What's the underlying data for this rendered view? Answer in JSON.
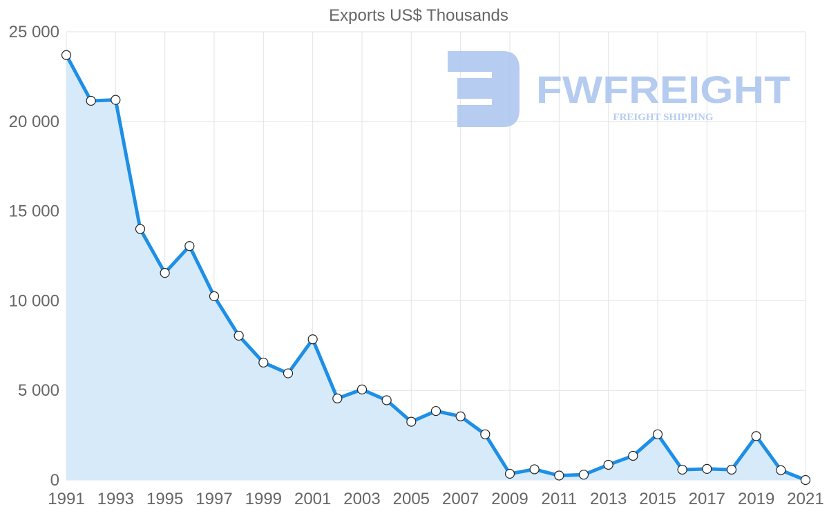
{
  "chart_data": {
    "type": "area",
    "title": "Exports US$ Thousands",
    "x": [
      "1991",
      "1992",
      "1993",
      "1994",
      "1995",
      "1996",
      "1997",
      "1998",
      "1999",
      "2000",
      "2001",
      "2002",
      "2003",
      "2004",
      "2005",
      "2006",
      "2007",
      "2008",
      "2009",
      "2010",
      "2011",
      "2012",
      "2013",
      "2014",
      "2015",
      "2016",
      "2017",
      "2018",
      "2019",
      "2020",
      "2021"
    ],
    "series": [
      {
        "name": "Exports US$ Thousands",
        "values": [
          23700,
          21150,
          21200,
          14000,
          11550,
          13050,
          10250,
          8050,
          6550,
          5950,
          7850,
          4550,
          5050,
          4450,
          3250,
          3850,
          3550,
          2550,
          350,
          600,
          250,
          300,
          850,
          1350,
          2550,
          580,
          620,
          580,
          2450,
          550,
          0
        ]
      }
    ],
    "x_tick_labels": [
      "1991",
      "1993",
      "1995",
      "1997",
      "1999",
      "2001",
      "2003",
      "2005",
      "2007",
      "2009",
      "2011",
      "2013",
      "2015",
      "2017",
      "2019",
      "2021"
    ],
    "y_tick_labels": [
      "0",
      "5 000",
      "10 000",
      "15 000",
      "20 000",
      "25 000"
    ],
    "ylim": [
      0,
      25000
    ],
    "y_ticks": [
      0,
      5000,
      10000,
      15000,
      20000,
      25000
    ],
    "grid": true,
    "line_color": "#1e8fe6",
    "fill_color": "#d6eafa"
  },
  "watermark": {
    "brand": "FWFREIGHT",
    "tagline": "FREIGHT SHIPPING",
    "color": "#a9c4ee"
  }
}
